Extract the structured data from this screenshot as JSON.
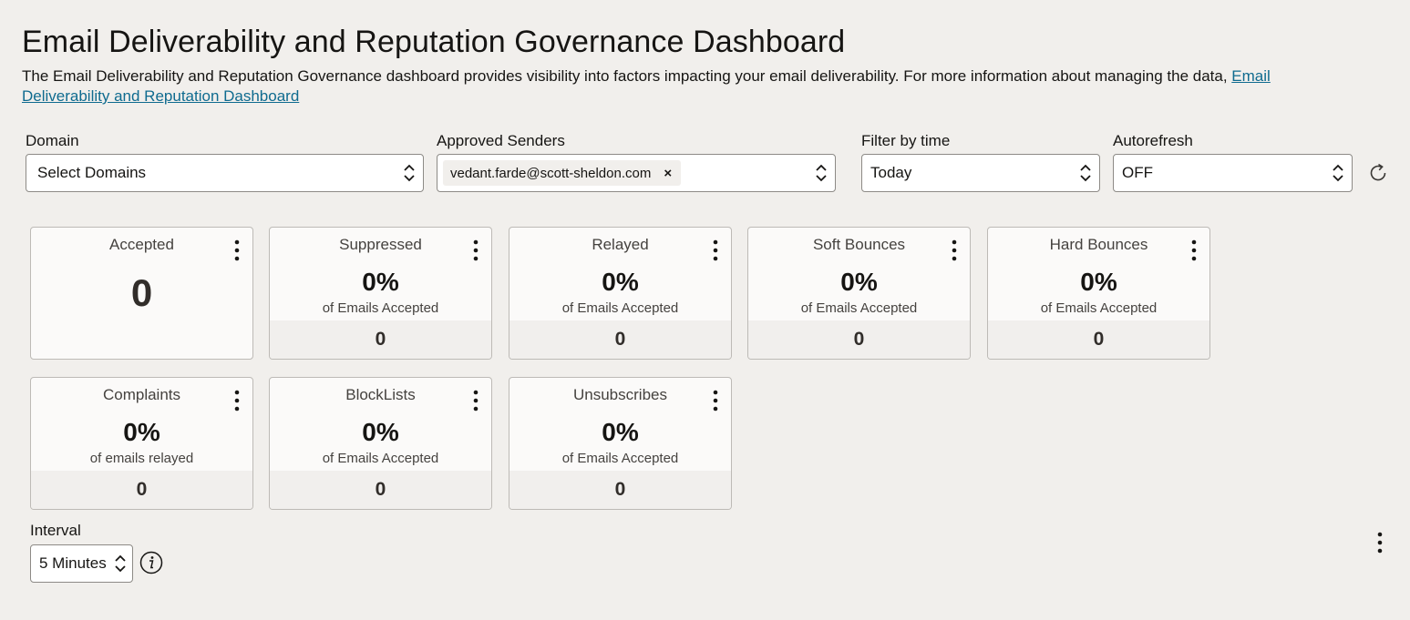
{
  "header": {
    "title": "Email Deliverability and Reputation Governance Dashboard",
    "description": "The Email Deliverability and Reputation Governance dashboard provides visibility into factors impacting your email deliverability. For more information about managing the data, ",
    "link_text": "Email Deliverability and Reputation Dashboard"
  },
  "filters": {
    "domain": {
      "label": "Domain",
      "value": "Select Domains"
    },
    "approved_senders": {
      "label": "Approved Senders",
      "chip": "vedant.farde@scott-sheldon.com",
      "chip_remove": "×"
    },
    "time": {
      "label": "Filter by time",
      "value": "Today"
    },
    "autorefresh": {
      "label": "Autorefresh",
      "value": "OFF"
    }
  },
  "cards": [
    {
      "title": "Accepted",
      "value": "0"
    },
    {
      "title": "Suppressed",
      "pct": "0%",
      "sub": "of Emails Accepted",
      "value": "0"
    },
    {
      "title": "Relayed",
      "pct": "0%",
      "sub": "of Emails Accepted",
      "value": "0"
    },
    {
      "title": "Soft Bounces",
      "pct": "0%",
      "sub": "of Emails Accepted",
      "value": "0"
    },
    {
      "title": "Hard Bounces",
      "pct": "0%",
      "sub": "of Emails Accepted",
      "value": "0"
    },
    {
      "title": "Complaints",
      "pct": "0%",
      "sub": "of emails relayed",
      "value": "0"
    },
    {
      "title": "BlockLists",
      "pct": "0%",
      "sub": "of Emails Accepted",
      "value": "0"
    },
    {
      "title": "Unsubscribes",
      "pct": "0%",
      "sub": "of Emails Accepted",
      "value": "0"
    }
  ],
  "interval": {
    "label": "Interval",
    "value": "5 Minutes"
  },
  "icons": {
    "select_arrows": "chevron-updown-icon",
    "refresh": "refresh-icon",
    "card_menu": "kebab-menu-icon",
    "info": "info-icon"
  },
  "colors": {
    "background": "#f1efec",
    "link": "#0f6b8f",
    "card_bg": "#fbfaf9",
    "card_footer": "#f1efed"
  }
}
